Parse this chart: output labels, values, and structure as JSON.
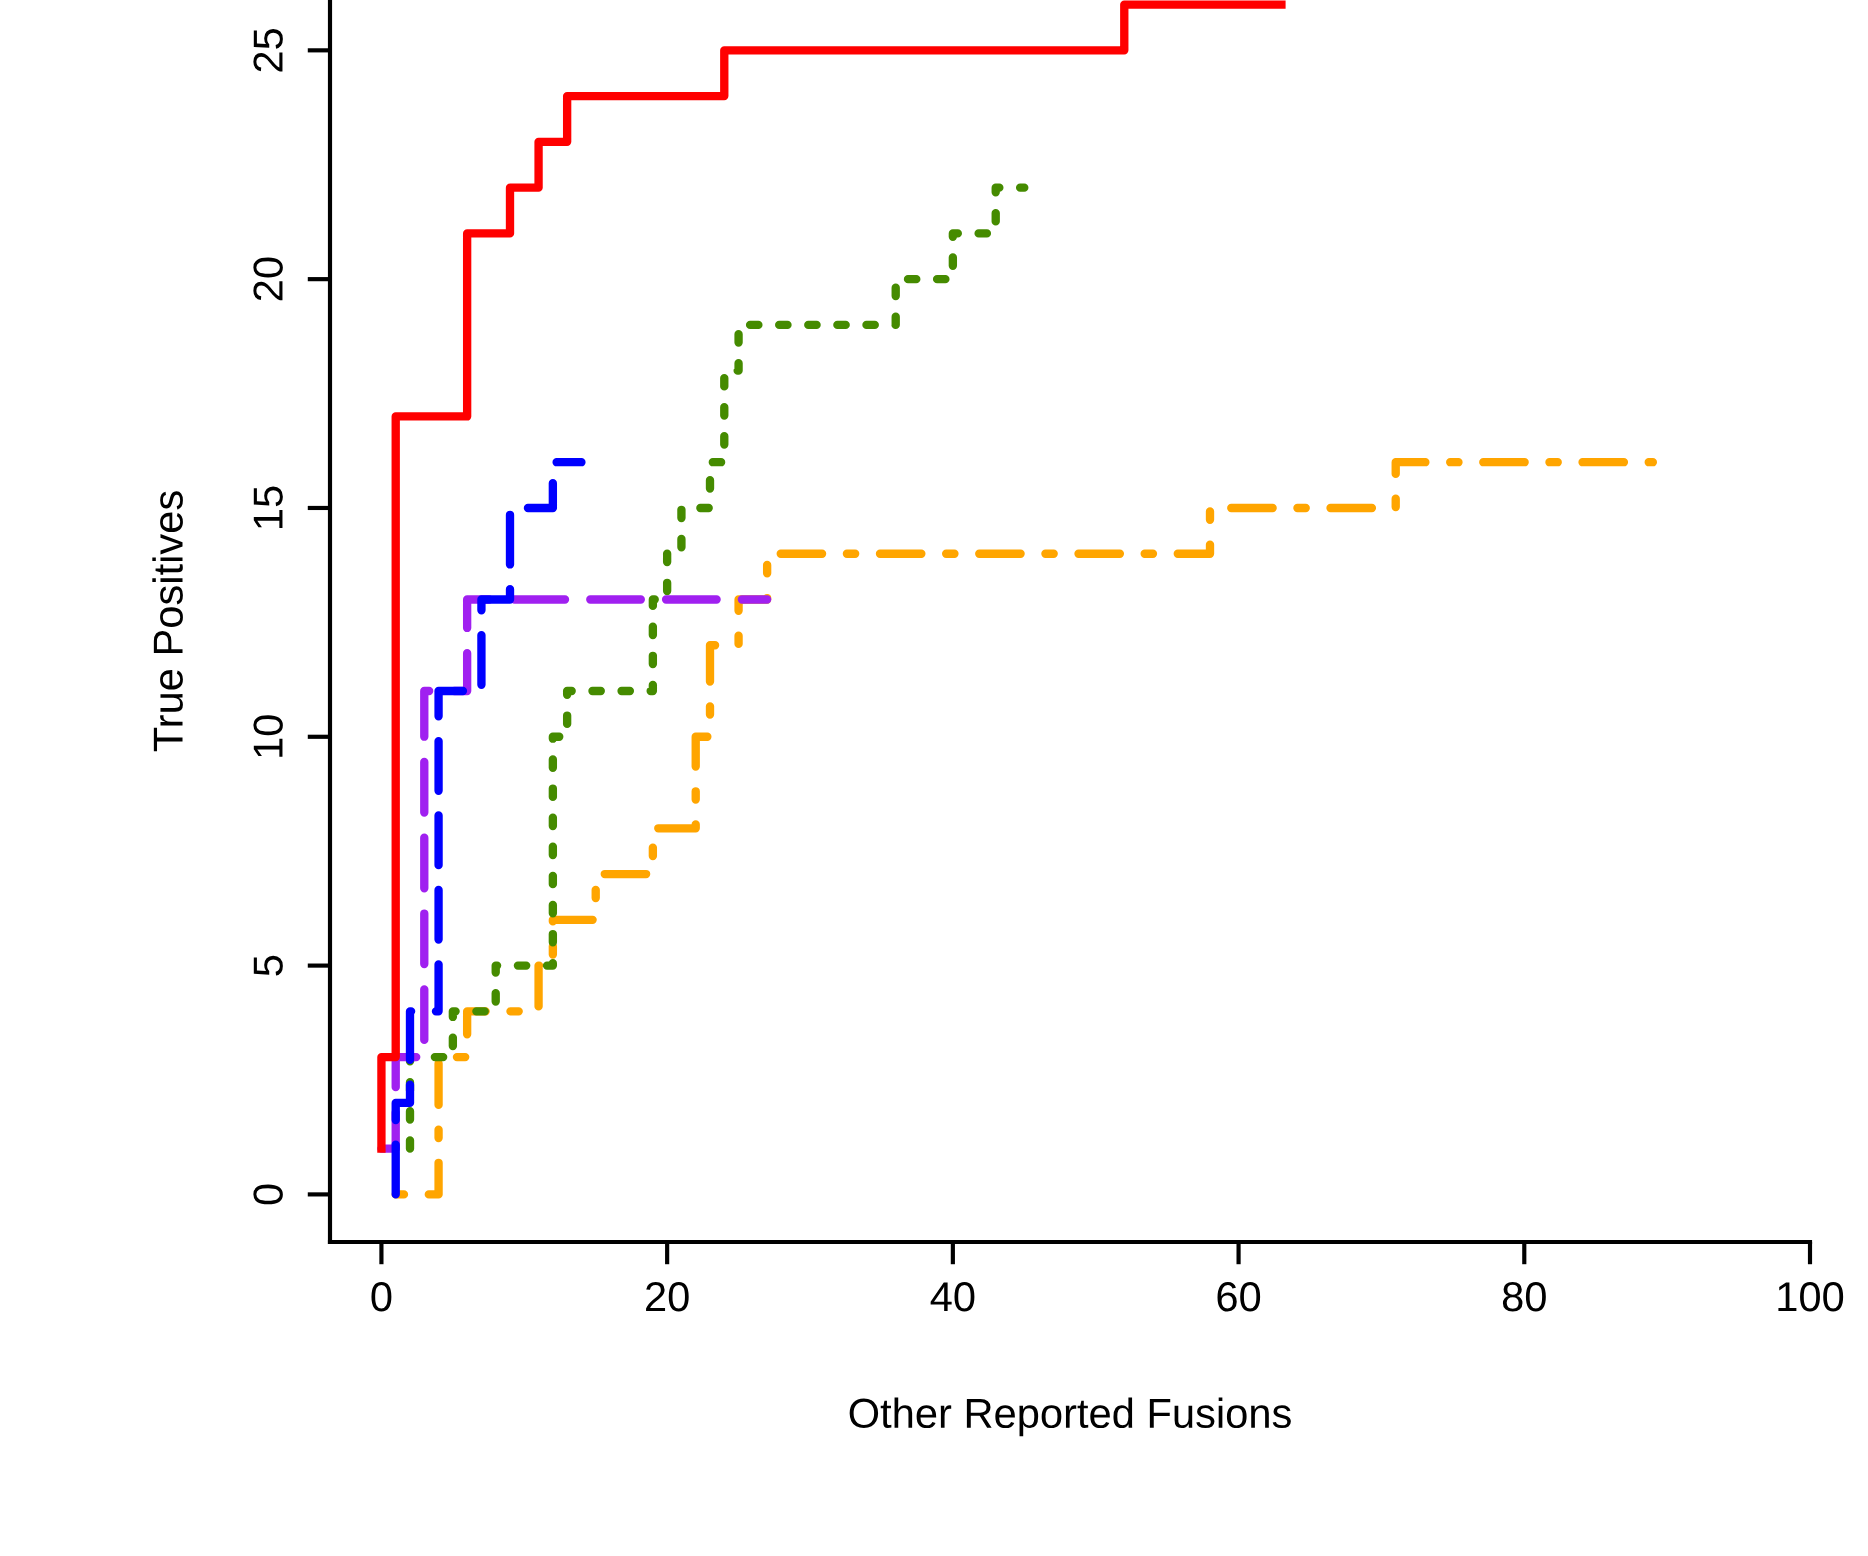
{
  "chart_data": {
    "type": "step",
    "xlabel": "Other Reported Fusions",
    "ylabel": "True Positives",
    "xlim": [
      -3.6,
      100
    ],
    "ylim": [
      -1.04,
      26.1
    ],
    "xticks": [
      0,
      20,
      40,
      60,
      80,
      100
    ],
    "yticks": [
      0,
      5,
      10,
      15,
      20,
      25
    ],
    "grid": false,
    "legend": false,
    "series": [
      {
        "color": "#ff0000",
        "line_style": "solid",
        "x": [
          0,
          0,
          1,
          6,
          9,
          11,
          13,
          24,
          52,
          63
        ],
        "values": [
          1,
          3,
          17,
          21,
          22,
          23,
          24,
          25,
          26,
          26
        ]
      },
      {
        "color": "#0000ff",
        "line_style": "dashed",
        "x": [
          1,
          1,
          2,
          4,
          7,
          9,
          12,
          14
        ],
        "values": [
          0,
          2,
          4,
          11,
          13,
          15,
          16,
          16
        ]
      },
      {
        "color": "#a020f0",
        "line_style": "dashed",
        "x": [
          0,
          1,
          3,
          6,
          27
        ],
        "values": [
          1,
          3,
          11,
          13,
          13
        ]
      },
      {
        "color": "#458b00",
        "line_style": "dotted",
        "x": [
          2,
          2,
          5,
          8,
          12,
          13,
          19,
          20,
          21,
          23,
          24,
          25,
          36,
          40,
          43,
          45
        ],
        "values": [
          1,
          3,
          4,
          5,
          10,
          11,
          13,
          14,
          15,
          16,
          18,
          19,
          20,
          21,
          22,
          22
        ]
      },
      {
        "color": "#ffa500",
        "line_style": "dashdot",
        "x": [
          1,
          4,
          6,
          11,
          12,
          15,
          19,
          22,
          23,
          25,
          27,
          58,
          71,
          89
        ],
        "values": [
          0,
          3,
          4,
          5,
          6,
          7,
          8,
          10,
          12,
          13,
          14,
          15,
          16,
          16
        ]
      }
    ]
  }
}
